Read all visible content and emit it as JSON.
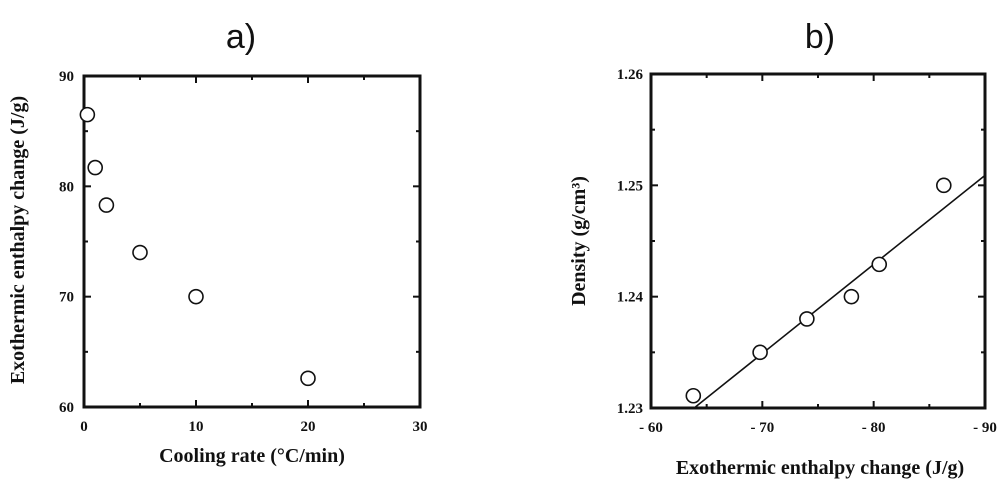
{
  "chart_data": [
    {
      "type": "scatter",
      "panel_label": "a)",
      "xlabel": "Cooling rate (°C/min)",
      "ylabel": "Exothermic enthalpy change (J/g)",
      "xlim": [
        0,
        30
      ],
      "ylim": [
        60,
        90
      ],
      "xticks": [
        0,
        10,
        20,
        30
      ],
      "xtick_labels": [
        "0",
        "10",
        "20",
        "30"
      ],
      "yticks": [
        60,
        70,
        80,
        90
      ],
      "ytick_labels": [
        "60",
        "70",
        "80",
        "90"
      ],
      "x": [
        0.3,
        1,
        2,
        5,
        10,
        20
      ],
      "y": [
        86.5,
        81.7,
        78.3,
        74,
        70,
        62.6
      ],
      "grid": false
    },
    {
      "type": "scatter",
      "panel_label": "b)",
      "xlabel": "Exothermic enthalpy change (J/g)",
      "ylabel": "Density (g/cm³)",
      "xlim": [
        -60,
        -90
      ],
      "ylim": [
        1.23,
        1.26
      ],
      "xticks": [
        -60,
        -70,
        -80,
        -90
      ],
      "xtick_labels": [
        "- 60",
        "- 70",
        "- 80",
        "- 90"
      ],
      "yticks": [
        1.23,
        1.24,
        1.25,
        1.26
      ],
      "ytick_labels": [
        "1.23",
        "1.24",
        "1.25",
        "1.26"
      ],
      "x": [
        -63.8,
        -69.8,
        -74,
        -78,
        -80.5,
        -86.3
      ],
      "y": [
        1.2311,
        1.235,
        1.238,
        1.24,
        1.2429,
        1.25
      ],
      "fit_line": {
        "x": [
          -64,
          -90
        ],
        "y": [
          1.2301,
          1.2509
        ]
      },
      "grid": false
    }
  ]
}
